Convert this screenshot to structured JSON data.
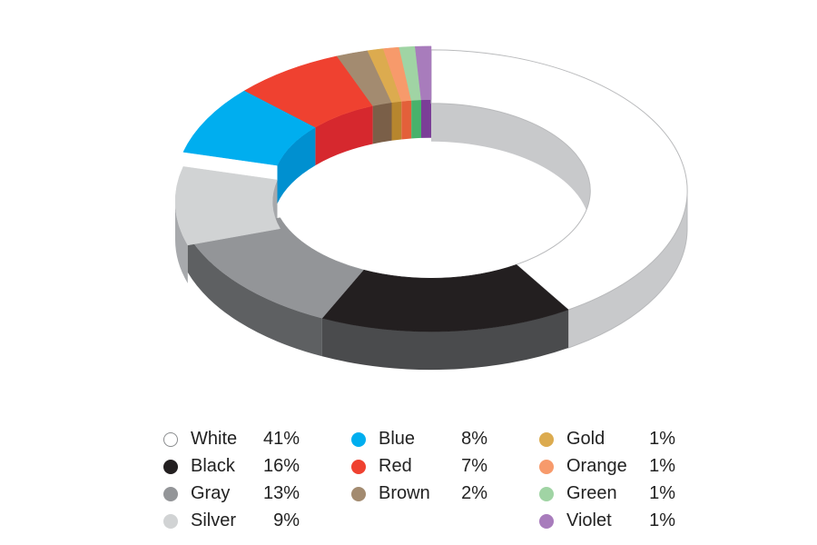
{
  "chart_data": {
    "type": "pie",
    "style": "3d-donut",
    "title": "",
    "series": [
      {
        "name": "White",
        "value": 41,
        "label": "41%",
        "color": "#ffffff",
        "side": "#c8c9cb"
      },
      {
        "name": "Black",
        "value": 16,
        "label": "16%",
        "color": "#231f20",
        "side": "#4a4b4d"
      },
      {
        "name": "Gray",
        "value": 13,
        "label": "13%",
        "color": "#939598",
        "side": "#5e6062"
      },
      {
        "name": "Silver",
        "value": 9,
        "label": "9%",
        "color": "#d1d3d4",
        "side": "#a7a9ac"
      },
      {
        "name": "Blue",
        "value": 8,
        "label": "8%",
        "color": "#00aeef",
        "side": "#0090d0"
      },
      {
        "name": "Red",
        "value": 7,
        "label": "7%",
        "color": "#ef4130",
        "side": "#d6282e"
      },
      {
        "name": "Brown",
        "value": 2,
        "label": "2%",
        "color": "#a38b70",
        "side": "#7a5f48"
      },
      {
        "name": "Gold",
        "value": 1,
        "label": "1%",
        "color": "#dcab4f",
        "side": "#b7862e"
      },
      {
        "name": "Orange",
        "value": 1,
        "label": "1%",
        "color": "#f79a6b",
        "side": "#e3603a"
      },
      {
        "name": "Green",
        "value": 1,
        "label": "1%",
        "color": "#a0d4a4",
        "side": "#48b26b"
      },
      {
        "name": "Violet",
        "value": 1,
        "label": "1%",
        "color": "#a87cbc",
        "side": "#7b3e97"
      }
    ],
    "legend_position": "bottom"
  }
}
